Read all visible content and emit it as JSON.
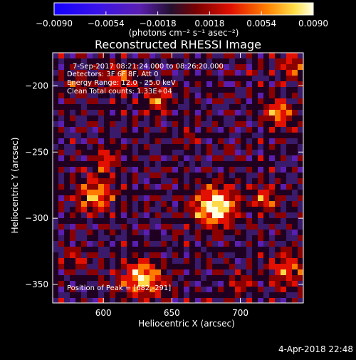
{
  "colorbar": {
    "tick_labels": [
      "−0.0090",
      "−0.0054",
      "−0.0018",
      "0.0018",
      "0.0054",
      "0.0090"
    ],
    "tick_values": [
      -0.009,
      -0.0054,
      -0.0018,
      0.0018,
      0.0054,
      0.009
    ],
    "range": [
      -0.009,
      0.009
    ],
    "units_label": "(photons cm⁻² s⁻¹ asec⁻²)"
  },
  "chart_data": {
    "type": "heatmap",
    "title": "Reconstructed RHESSI Image",
    "xlabel": "Heliocentric X (arcsec)",
    "ylabel": "Heliocentric Y (arcsec)",
    "xlim": [
      563,
      746
    ],
    "ylim": [
      -364,
      -175
    ],
    "x_ticks": [
      600,
      650,
      700
    ],
    "y_ticks": [
      -200,
      -250,
      -300,
      -350
    ],
    "x_tick_labels": [
      "600",
      "650",
      "700"
    ],
    "y_tick_labels": [
      "−200",
      "−250",
      "−300",
      "−350"
    ],
    "colormap": [
      "#1c00ff",
      "#5a1fb0",
      "#3a1a6a",
      "#200020",
      "#8b0000",
      "#e11000",
      "#ff7a00",
      "#ffd84a",
      "#ffffe0"
    ],
    "peak_position": [
      682,
      -291
    ],
    "annotations": [
      "7-Sep-2017 08:21:24.000 to 08:26:20.000",
      "Detectors: 3F 6F 8F, Att 0",
      "Energy Range: 12.0 - 25.0 keV",
      "Clean     Total counts: 1.33E+04",
      "Position of Peak = [682,-291]"
    ]
  },
  "footer": {
    "timestamp": "4-Apr-2018 22:48"
  }
}
